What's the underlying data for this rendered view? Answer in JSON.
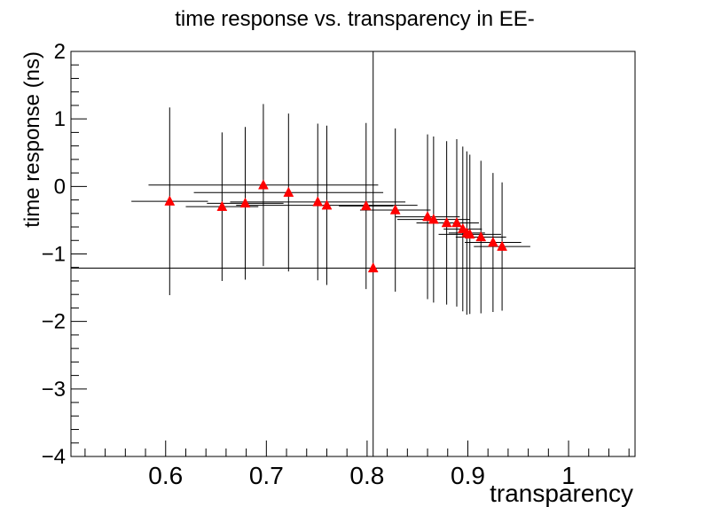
{
  "chart_data": {
    "type": "scatter",
    "title": "time response vs. transparency in EE-",
    "xlabel": "transparency",
    "ylabel": "time response (ns)",
    "xlim": [
      0.506,
      1.066
    ],
    "ylim": [
      -4,
      2
    ],
    "x_ticks": [
      {
        "value": 0.6,
        "label": "0.6"
      },
      {
        "value": 0.7,
        "label": "0.7"
      },
      {
        "value": 0.8,
        "label": "0.8"
      },
      {
        "value": 0.9,
        "label": "0.9"
      },
      {
        "value": 1.0,
        "label": "1"
      }
    ],
    "y_ticks": [
      {
        "value": 2,
        "label": "2"
      },
      {
        "value": 1,
        "label": "1"
      },
      {
        "value": 0,
        "label": "0"
      },
      {
        "value": -1,
        "label": "−1"
      },
      {
        "value": -2,
        "label": "−2"
      },
      {
        "value": -3,
        "label": "−3"
      },
      {
        "value": -4,
        "label": "−4"
      }
    ],
    "marker_color": "#ff0000",
    "line_color": "#000000",
    "crosshair": {
      "x": 0.806,
      "y": -1.21
    },
    "points": [
      {
        "x": 0.604,
        "y": -0.22,
        "xerr": 0.038,
        "yerr": 1.39
      },
      {
        "x": 0.656,
        "y": -0.3,
        "xerr": 0.036,
        "yerr": 1.1
      },
      {
        "x": 0.679,
        "y": -0.25,
        "xerr": 0.038,
        "yerr": 1.13
      },
      {
        "x": 0.697,
        "y": 0.02,
        "xerr": 0.114,
        "yerr": 1.2
      },
      {
        "x": 0.722,
        "y": -0.09,
        "xerr": 0.094,
        "yerr": 1.17
      },
      {
        "x": 0.751,
        "y": -0.23,
        "xerr": 0.087,
        "yerr": 1.16
      },
      {
        "x": 0.76,
        "y": -0.28,
        "xerr": 0.09,
        "yerr": 1.18
      },
      {
        "x": 0.799,
        "y": -0.29,
        "xerr": 0.027,
        "yerr": 1.23
      },
      {
        "x": 0.806,
        "y": -1.21,
        "xerr": 0.015,
        "yerr": 0.05
      },
      {
        "x": 0.828,
        "y": -0.35,
        "xerr": 0.035,
        "yerr": 1.21
      },
      {
        "x": 0.86,
        "y": -0.45,
        "xerr": 0.032,
        "yerr": 1.22
      },
      {
        "x": 0.866,
        "y": -0.49,
        "xerr": 0.036,
        "yerr": 1.23
      },
      {
        "x": 0.879,
        "y": -0.54,
        "xerr": 0.03,
        "yerr": 1.21
      },
      {
        "x": 0.889,
        "y": -0.54,
        "xerr": 0.022,
        "yerr": 1.24
      },
      {
        "x": 0.895,
        "y": -0.63,
        "xerr": 0.019,
        "yerr": 1.22
      },
      {
        "x": 0.899,
        "y": -0.69,
        "xerr": 0.018,
        "yerr": 1.21
      },
      {
        "x": 0.902,
        "y": -0.71,
        "xerr": 0.031,
        "yerr": 1.18
      },
      {
        "x": 0.913,
        "y": -0.75,
        "xerr": 0.025,
        "yerr": 1.13
      },
      {
        "x": 0.925,
        "y": -0.83,
        "xerr": 0.028,
        "yerr": 1.03
      },
      {
        "x": 0.934,
        "y": -0.89,
        "xerr": 0.028,
        "yerr": 0.95
      }
    ]
  }
}
